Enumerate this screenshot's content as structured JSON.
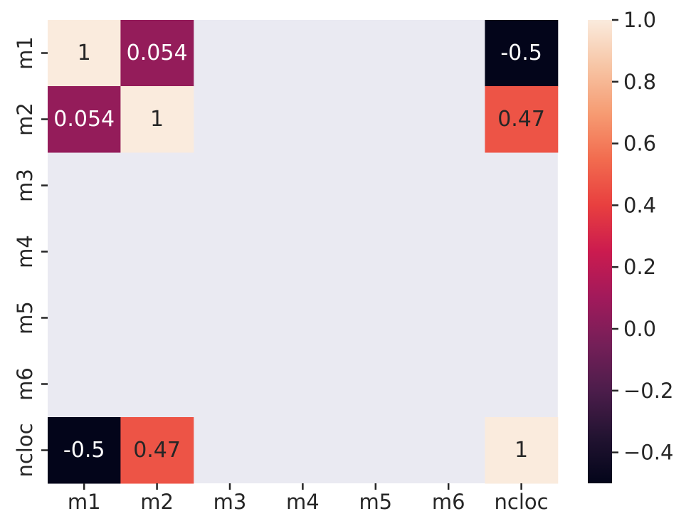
{
  "chart_data": {
    "type": "heatmap",
    "title": "",
    "xlabel": "",
    "ylabel": "",
    "row_labels": [
      "m1",
      "m2",
      "m3",
      "m4",
      "m5",
      "m6",
      "ncloc"
    ],
    "col_labels": [
      "m1",
      "m2",
      "m3",
      "m4",
      "m5",
      "m6",
      "ncloc"
    ],
    "values": [
      [
        1,
        0.054,
        null,
        null,
        null,
        null,
        -0.5
      ],
      [
        0.054,
        1,
        null,
        null,
        null,
        null,
        0.47
      ],
      [
        null,
        null,
        null,
        null,
        null,
        null,
        null
      ],
      [
        null,
        null,
        null,
        null,
        null,
        null,
        null
      ],
      [
        null,
        null,
        null,
        null,
        null,
        null,
        null
      ],
      [
        null,
        null,
        null,
        null,
        null,
        null,
        null
      ],
      [
        -0.5,
        0.47,
        null,
        null,
        null,
        null,
        1
      ]
    ],
    "annotations": [
      [
        "1",
        "0.054",
        "",
        "",
        "",
        "",
        "-0.5"
      ],
      [
        "0.054",
        "1",
        "",
        "",
        "",
        "",
        "0.47"
      ],
      [
        "",
        "",
        "",
        "",
        "",
        "",
        ""
      ],
      [
        "",
        "",
        "",
        "",
        "",
        "",
        ""
      ],
      [
        "",
        "",
        "",
        "",
        "",
        "",
        ""
      ],
      [
        "",
        "",
        "",
        "",
        "",
        "",
        ""
      ],
      [
        "-0.5",
        "0.47",
        "",
        "",
        "",
        "",
        "1"
      ]
    ],
    "colorbar": {
      "vmin": -0.5,
      "vmax": 1.0,
      "ticks": [
        1.0,
        0.8,
        0.6,
        0.4,
        0.2,
        0.0,
        -0.2,
        -0.4
      ],
      "tick_labels": [
        "1.0",
        "0.8",
        "0.6",
        "0.4",
        "0.2",
        "0.0",
        "−0.2",
        "−0.4"
      ],
      "colormap": "rocket"
    },
    "missing_color": "#eaeaf2",
    "grid": false
  }
}
